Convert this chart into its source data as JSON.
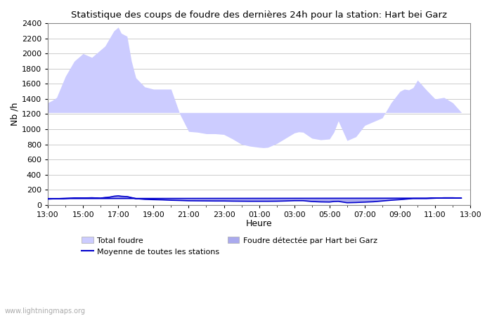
{
  "title": "Statistique des coups de foudre des dernières 24h pour la station: Hart bei Garz",
  "xlabel": "Heure",
  "ylabel": "Nb /h",
  "ylim": [
    0,
    2400
  ],
  "yticks": [
    0,
    200,
    400,
    600,
    800,
    1000,
    1200,
    1400,
    1600,
    1800,
    2000,
    2200,
    2400
  ],
  "xtick_labels": [
    "13:00",
    "15:00",
    "17:00",
    "19:00",
    "21:00",
    "23:00",
    "01:00",
    "03:00",
    "05:00",
    "07:00",
    "09:00",
    "11:00",
    "13:00"
  ],
  "background_color": "#ffffff",
  "plot_bg_color": "#ffffff",
  "grid_color": "#cccccc",
  "total_foudre_color": "#ccccff",
  "detected_color": "#aaaaee",
  "moyenne_color": "#0000cc",
  "watermark": "www.lightningmaps.org",
  "x_hours": [
    13,
    13.25,
    13.5,
    14,
    14.5,
    15,
    15.5,
    16,
    16.25,
    16.5,
    16.75,
    17,
    17.17,
    17.33,
    17.5,
    17.75,
    18,
    18.5,
    19,
    19.5,
    20,
    20.5,
    21,
    21.5,
    22,
    22.5,
    23,
    23.5,
    0,
    0.5,
    1,
    1.25,
    1.5,
    2,
    2.5,
    3,
    3.25,
    3.5,
    4,
    4.5,
    5,
    5.25,
    5.5,
    6,
    6.5,
    7,
    7.5,
    8,
    8.5,
    9,
    9.25,
    9.5,
    9.75,
    10,
    10.5,
    11,
    11.5,
    12,
    12.5,
    13
  ],
  "total_foudre_values": [
    1350,
    1380,
    1420,
    1700,
    1900,
    2000,
    1950,
    2050,
    2100,
    2200,
    2300,
    2350,
    2270,
    2250,
    2230,
    1900,
    1680,
    1560,
    1530,
    1530,
    1530,
    1200,
    970,
    960,
    940,
    940,
    930,
    870,
    800,
    775,
    760,
    755,
    760,
    810,
    880,
    950,
    965,
    960,
    880,
    860,
    870,
    960,
    1110,
    850,
    900,
    1050,
    1100,
    1150,
    1350,
    1500,
    1530,
    1520,
    1550,
    1650,
    1520,
    1400,
    1420,
    1350,
    1220,
    1220
  ],
  "detected_values": [
    80,
    85,
    88,
    95,
    100,
    100,
    105,
    100,
    110,
    115,
    125,
    130,
    125,
    122,
    120,
    105,
    90,
    80,
    75,
    70,
    65,
    62,
    58,
    57,
    56,
    55,
    55,
    53,
    52,
    51,
    50,
    50,
    50,
    52,
    55,
    60,
    60,
    60,
    48,
    42,
    40,
    48,
    50,
    30,
    35,
    40,
    45,
    55,
    65,
    75,
    80,
    85,
    90,
    90,
    90,
    95,
    100,
    100,
    95,
    90
  ],
  "moyenne_values": [
    75,
    78,
    80,
    85,
    90,
    90,
    92,
    88,
    95,
    100,
    112,
    118,
    112,
    110,
    108,
    95,
    82,
    72,
    68,
    65,
    60,
    57,
    53,
    52,
    51,
    50,
    50,
    48,
    47,
    46,
    46,
    46,
    46,
    47,
    50,
    54,
    54,
    54,
    43,
    38,
    36,
    43,
    45,
    27,
    30,
    35,
    40,
    50,
    60,
    68,
    73,
    78,
    82,
    82,
    82,
    87,
    92,
    92,
    88,
    82
  ]
}
